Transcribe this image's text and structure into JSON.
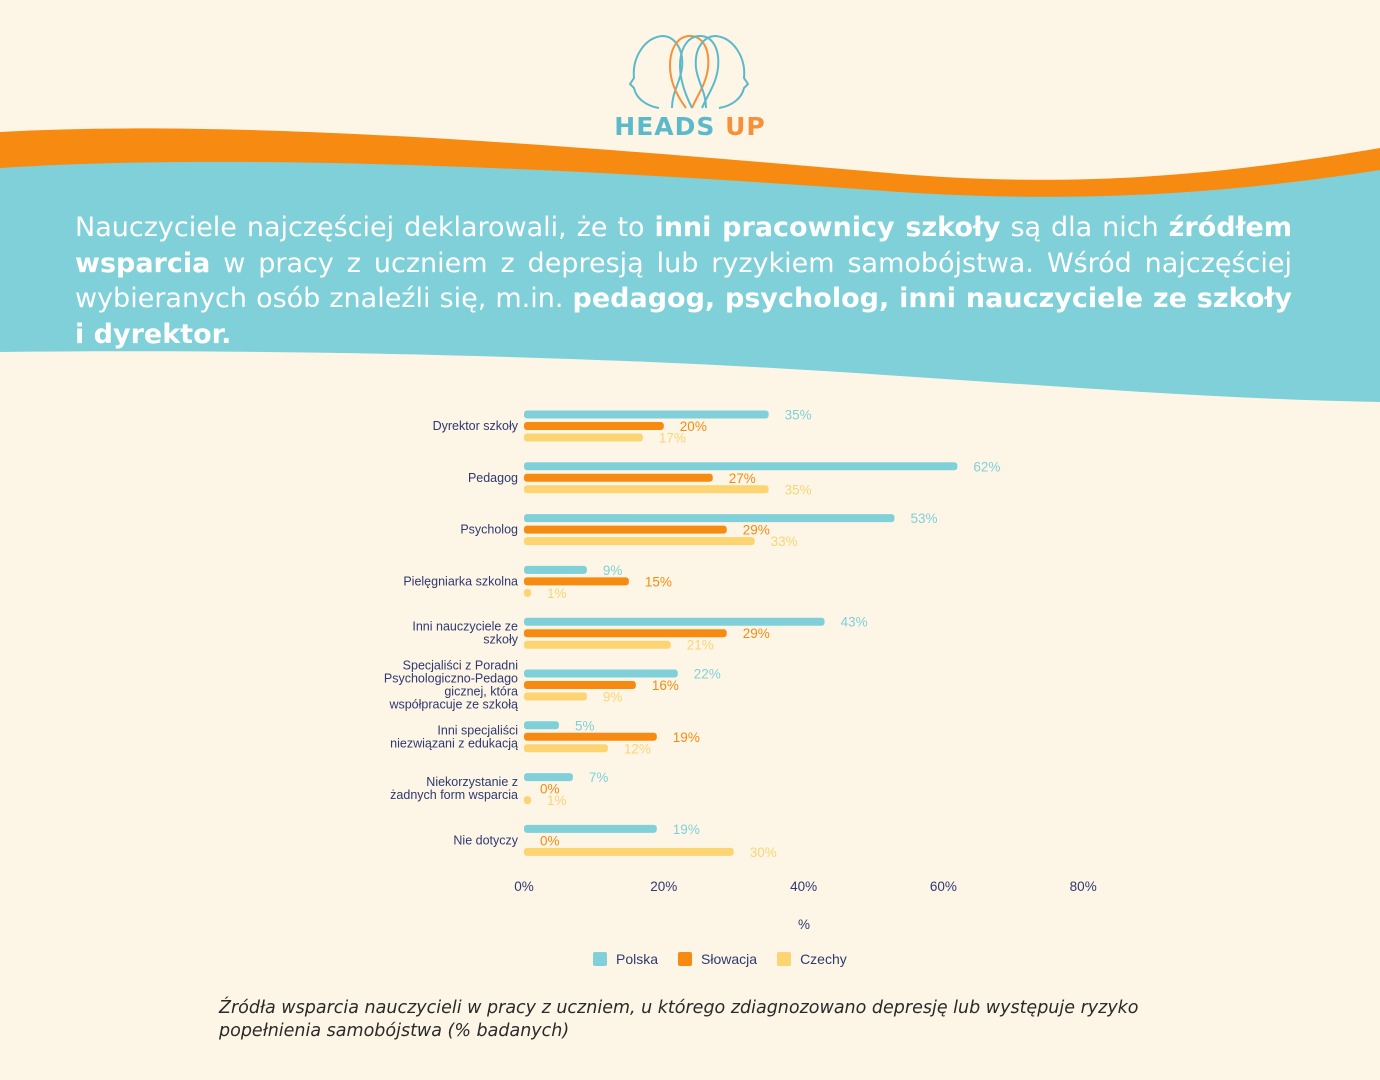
{
  "brand": {
    "part1": "HEADS",
    "part2": "UP"
  },
  "headline": {
    "s1": "Nauczyciele najczęściej deklarowali, że to ",
    "b1": "inni pracownicy szkoły",
    "s2": " są dla nich ",
    "b2": "źródłem wsparcia",
    "s3": " w pracy z uczniem z depresją lub ryzykiem samobójstwa. Wśród najczęściej wybieranych osób znaleźli się, m.in. ",
    "b3": "pedagog, psycholog, inni nauczyciele ze szkoły i dyrektor."
  },
  "colors": {
    "polska": "#7fd0d8",
    "slowacja": "#f78a10",
    "czechy": "#fcd472",
    "teal_band": "#7fd0d8",
    "orange_band": "#f78a10"
  },
  "chart_data": {
    "type": "bar",
    "orientation": "horizontal",
    "categories": [
      [
        "Dyrektor szkoły"
      ],
      [
        "Pedagog"
      ],
      [
        "Psycholog"
      ],
      [
        "Pielęgniarka szkolna"
      ],
      [
        "Inni nauczyciele ze",
        "szkoły"
      ],
      [
        "Specjaliści z Poradni",
        "Psychologiczno-Pedago",
        "gicznej, która",
        "współpracuje ze szkołą"
      ],
      [
        "Inni specjaliści",
        "niezwiązani z edukacją"
      ],
      [
        "Niekorzystanie z",
        "żadnych form wsparcia"
      ],
      [
        "Nie dotyczy"
      ]
    ],
    "series": [
      {
        "name": "Polska",
        "color": "#7fd0d8",
        "values": [
          35,
          62,
          53,
          9,
          43,
          22,
          5,
          7,
          19
        ]
      },
      {
        "name": "Słowacja",
        "color": "#f78a10",
        "values": [
          20,
          27,
          29,
          15,
          29,
          16,
          19,
          0,
          0
        ]
      },
      {
        "name": "Czechy",
        "color": "#fcd472",
        "values": [
          17,
          35,
          33,
          1,
          21,
          9,
          12,
          1,
          30
        ]
      }
    ],
    "value_suffix": "%",
    "xlim": [
      0,
      80
    ],
    "xticks": [
      "0%",
      "20%",
      "40%",
      "60%",
      "80%"
    ],
    "xlabel": "%",
    "legend_position": "bottom",
    "grid": false
  },
  "caption": "Źródła wsparcia nauczycieli w pracy z uczniem, u którego zdiagnozowano depresję lub występuje ryzyko popełnienia samobójstwa (% badanych)"
}
